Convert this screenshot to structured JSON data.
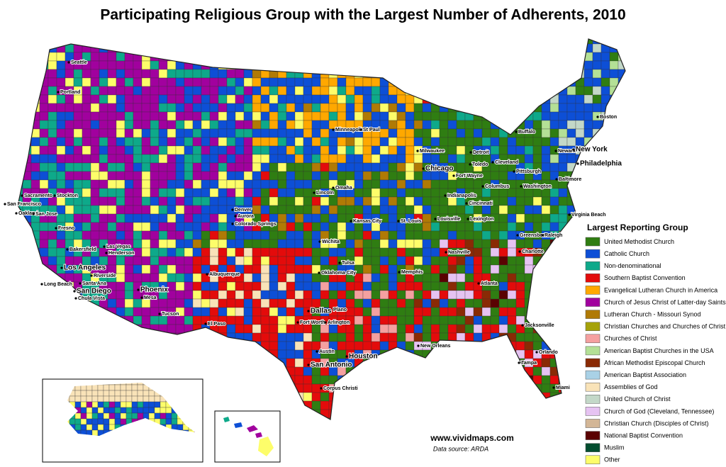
{
  "title": "Participating Religious Group with the Largest Number of Adherents, 2010",
  "legend": {
    "title": "Largest Reporting Group",
    "items": [
      {
        "name": "United Methodist Church",
        "color": "#2f7d12"
      },
      {
        "name": "Catholic Church",
        "color": "#0d4fd6"
      },
      {
        "name": "Non-denominational",
        "color": "#0ea98a"
      },
      {
        "name": "Southern Baptist Convention",
        "color": "#e30b0b"
      },
      {
        "name": "Evangelical Lutheran Church in America",
        "color": "#ffa800"
      },
      {
        "name": "Church of Jesus Christ of Latter-day Saints",
        "color": "#a1019e"
      },
      {
        "name": "Lutheran Church - Missouri Synod",
        "color": "#b07a05"
      },
      {
        "name": "Christian Churches and Churches of Christ",
        "color": "#a5a20a"
      },
      {
        "name": "Churches of Christ",
        "color": "#f5a0a0"
      },
      {
        "name": "American Baptist Churches in the USA",
        "color": "#b4e096"
      },
      {
        "name": "African Methodist Episcopal Church",
        "color": "#8a2a05"
      },
      {
        "name": "American Baptist Association",
        "color": "#a9d1e6"
      },
      {
        "name": "Assemblies of God",
        "color": "#f9e3b8"
      },
      {
        "name": "United Church of Christ",
        "color": "#c3d8c8"
      },
      {
        "name": "Church of God (Cleveland, Tennessee)",
        "color": "#e6c3f2"
      },
      {
        "name": "Christian Church (Disciples of Christ)",
        "color": "#d3b696"
      },
      {
        "name": "National Baptist Convention",
        "color": "#5a0202"
      },
      {
        "name": "Muslim",
        "color": "#034d2f"
      },
      {
        "name": "Other",
        "color": "#fdfd6a"
      }
    ]
  },
  "cities": [
    "Seattle",
    "Portland",
    "Sacramento",
    "Stockton",
    "San Francisco",
    "Oakland",
    "San Jose",
    "Fresno",
    "Bakersfield",
    "Los Angeles",
    "Riverside",
    "Long Beach",
    "Santa Ana",
    "San Diego",
    "Chula Vista",
    "Las Vegas",
    "Henderson",
    "Phoenix",
    "Mesa",
    "Tucson",
    "Albuquerque",
    "El Paso",
    "Denver",
    "Aurora",
    "Colorado Springs",
    "Lincoln",
    "Omaha",
    "Wichita",
    "Kansas City",
    "Tulsa",
    "Oklahoma City",
    "Plano",
    "Dallas",
    "Fort Worth",
    "Arlington",
    "Austin",
    "San Antonio",
    "Houston",
    "Corpus Christi",
    "Minneapolis",
    "St Paul",
    "Milwaukee",
    "Chicago",
    "Detroit",
    "Toledo",
    "Cleveland",
    "Fort Wayne",
    "Indianapolis",
    "Columbus",
    "Cincinnati",
    "Pittsburgh",
    "Buffalo",
    "Boston",
    "Newark",
    "New York",
    "Philadelphia",
    "Baltimore",
    "Washington",
    "Virginia Beach",
    "Lexington",
    "Louisville",
    "St. Louis",
    "Nashville",
    "Memphis",
    "Atlanta",
    "Greensboro",
    "Raleigh",
    "Charlotte",
    "Jacksonville",
    "New Orleans",
    "Orlando",
    "Tampa",
    "Miami"
  ],
  "website": "www.vividmaps.com",
  "source": "Data source: ARDA"
}
